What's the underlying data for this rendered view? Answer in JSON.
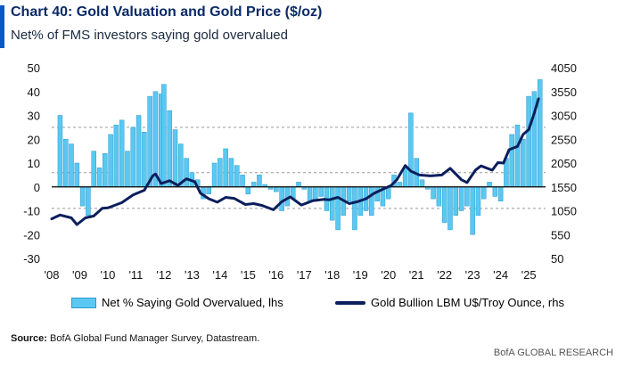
{
  "header": {
    "title": "Chart 40: Gold Valuation and Gold Price ($/oz)",
    "subtitle": "Net% of FMS investors saying gold overvalued"
  },
  "chart_data": {
    "type": "bar",
    "x_ticks": [
      "'08",
      "'09",
      "'10",
      "'11",
      "'12",
      "'13",
      "'14",
      "'15",
      "'16",
      "'17",
      "'18",
      "'19",
      "'20",
      "'21",
      "'22",
      "'23",
      "'24",
      "'25"
    ],
    "x_range": [
      2008.0,
      2025.6
    ],
    "left_axis": {
      "ticks": [
        "50",
        "40",
        "30",
        "20",
        "10",
        "0",
        "-10",
        "-20",
        "-30"
      ],
      "ylim": [
        -30,
        50
      ]
    },
    "right_axis": {
      "ticks": [
        "4050",
        "3550",
        "3050",
        "2550",
        "2050",
        "1550",
        "1050",
        "550",
        "50"
      ],
      "ylim": [
        50,
        4050
      ]
    },
    "reference_lines": [
      25,
      6,
      -9
    ],
    "colors": {
      "bars": "#5ac8f0",
      "bar_edge": "#2c9bd0",
      "line": "#0b1f5c",
      "zero_line": "#000000",
      "ref_lines": "#999999"
    },
    "series": [
      {
        "name": "Net % Saying Gold Overvalued, lhs",
        "kind": "bar",
        "axis": "left",
        "points": [
          [
            2008.3,
            30
          ],
          [
            2008.5,
            20
          ],
          [
            2008.7,
            18
          ],
          [
            2008.9,
            10
          ],
          [
            2009.1,
            -8
          ],
          [
            2009.3,
            -12
          ],
          [
            2009.5,
            15
          ],
          [
            2009.7,
            8
          ],
          [
            2009.9,
            14
          ],
          [
            2010.1,
            22
          ],
          [
            2010.3,
            26
          ],
          [
            2010.5,
            28
          ],
          [
            2010.7,
            15
          ],
          [
            2010.9,
            25
          ],
          [
            2011.1,
            30
          ],
          [
            2011.3,
            23
          ],
          [
            2011.5,
            38
          ],
          [
            2011.7,
            40
          ],
          [
            2011.9,
            39
          ],
          [
            2012.0,
            43
          ],
          [
            2012.2,
            32
          ],
          [
            2012.4,
            24
          ],
          [
            2012.6,
            18
          ],
          [
            2012.8,
            12
          ],
          [
            2013.0,
            6
          ],
          [
            2013.2,
            3
          ],
          [
            2013.4,
            -5
          ],
          [
            2013.6,
            -3
          ],
          [
            2013.8,
            10
          ],
          [
            2014.0,
            12
          ],
          [
            2014.2,
            16
          ],
          [
            2014.4,
            12
          ],
          [
            2014.6,
            9
          ],
          [
            2014.8,
            5
          ],
          [
            2015.0,
            -3
          ],
          [
            2015.2,
            2
          ],
          [
            2015.4,
            5
          ],
          [
            2015.6,
            1
          ],
          [
            2015.8,
            -1
          ],
          [
            2016.0,
            -2
          ],
          [
            2016.2,
            -10
          ],
          [
            2016.4,
            -8
          ],
          [
            2016.6,
            -5
          ],
          [
            2016.8,
            2
          ],
          [
            2017.0,
            -1
          ],
          [
            2017.2,
            -6
          ],
          [
            2017.4,
            -6
          ],
          [
            2017.6,
            -4
          ],
          [
            2017.8,
            -10
          ],
          [
            2018.0,
            -14
          ],
          [
            2018.2,
            -18
          ],
          [
            2018.4,
            -12
          ],
          [
            2018.6,
            -6
          ],
          [
            2018.8,
            -18
          ],
          [
            2019.0,
            -12
          ],
          [
            2019.2,
            -10
          ],
          [
            2019.4,
            -12
          ],
          [
            2019.6,
            -6
          ],
          [
            2019.8,
            -8
          ],
          [
            2020.0,
            -5
          ],
          [
            2020.2,
            5
          ],
          [
            2020.4,
            2
          ],
          [
            2020.6,
            8
          ],
          [
            2020.8,
            31
          ],
          [
            2021.0,
            12
          ],
          [
            2021.2,
            3
          ],
          [
            2021.4,
            -1
          ],
          [
            2021.6,
            -5
          ],
          [
            2021.8,
            -8
          ],
          [
            2022.0,
            -15
          ],
          [
            2022.2,
            -18
          ],
          [
            2022.4,
            -12
          ],
          [
            2022.6,
            -10
          ],
          [
            2022.8,
            -8
          ],
          [
            2023.0,
            -20
          ],
          [
            2023.2,
            -12
          ],
          [
            2023.4,
            -5
          ],
          [
            2023.6,
            2
          ],
          [
            2023.8,
            -4
          ],
          [
            2024.0,
            -6
          ],
          [
            2024.2,
            12
          ],
          [
            2024.4,
            22
          ],
          [
            2024.6,
            26
          ],
          [
            2024.8,
            20
          ],
          [
            2025.0,
            38
          ],
          [
            2025.2,
            40
          ],
          [
            2025.4,
            45
          ]
        ]
      },
      {
        "name": "Gold Bullion LBM U$/Troy Ounce, rhs",
        "kind": "line",
        "axis": "right",
        "points": [
          [
            2008.0,
            880
          ],
          [
            2008.3,
            960
          ],
          [
            2008.7,
            900
          ],
          [
            2008.9,
            760
          ],
          [
            2009.2,
            900
          ],
          [
            2009.5,
            940
          ],
          [
            2009.8,
            1100
          ],
          [
            2010.0,
            1110
          ],
          [
            2010.5,
            1220
          ],
          [
            2010.9,
            1380
          ],
          [
            2011.3,
            1480
          ],
          [
            2011.6,
            1780
          ],
          [
            2011.7,
            1820
          ],
          [
            2011.9,
            1620
          ],
          [
            2012.2,
            1680
          ],
          [
            2012.5,
            1580
          ],
          [
            2012.8,
            1720
          ],
          [
            2013.1,
            1660
          ],
          [
            2013.3,
            1420
          ],
          [
            2013.6,
            1300
          ],
          [
            2013.9,
            1230
          ],
          [
            2014.2,
            1330
          ],
          [
            2014.5,
            1310
          ],
          [
            2014.9,
            1180
          ],
          [
            2015.2,
            1200
          ],
          [
            2015.5,
            1160
          ],
          [
            2015.9,
            1070
          ],
          [
            2016.2,
            1240
          ],
          [
            2016.5,
            1340
          ],
          [
            2016.9,
            1170
          ],
          [
            2017.3,
            1260
          ],
          [
            2017.7,
            1290
          ],
          [
            2017.9,
            1280
          ],
          [
            2018.2,
            1330
          ],
          [
            2018.6,
            1200
          ],
          [
            2018.9,
            1240
          ],
          [
            2019.2,
            1300
          ],
          [
            2019.5,
            1420
          ],
          [
            2019.8,
            1500
          ],
          [
            2020.1,
            1580
          ],
          [
            2020.3,
            1700
          ],
          [
            2020.6,
            2000
          ],
          [
            2020.8,
            1880
          ],
          [
            2021.1,
            1800
          ],
          [
            2021.5,
            1780
          ],
          [
            2021.9,
            1800
          ],
          [
            2022.2,
            1940
          ],
          [
            2022.6,
            1700
          ],
          [
            2022.8,
            1640
          ],
          [
            2023.1,
            1900
          ],
          [
            2023.3,
            1990
          ],
          [
            2023.7,
            1900
          ],
          [
            2023.9,
            2060
          ],
          [
            2024.1,
            2050
          ],
          [
            2024.3,
            2330
          ],
          [
            2024.6,
            2400
          ],
          [
            2024.8,
            2650
          ],
          [
            2025.0,
            2750
          ],
          [
            2025.2,
            3100
          ],
          [
            2025.35,
            3400
          ]
        ]
      }
    ],
    "legend": [
      {
        "label": "Net % Saying Gold Overvalued, lhs",
        "kind": "bar"
      },
      {
        "label": "Gold Bullion LBM U$/Troy Ounce, rhs",
        "kind": "line"
      }
    ],
    "legend_position": "bottom"
  },
  "footer": {
    "source_label": "Source:",
    "source_text": " BofA Global Fund Manager Survey, Datastream.",
    "brand": "BofA GLOBAL RESEARCH"
  }
}
